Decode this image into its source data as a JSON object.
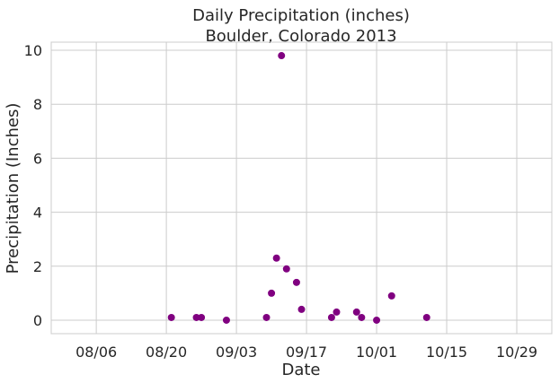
{
  "chart_data": {
    "type": "scatter",
    "title": "Daily Precipitation (inches)",
    "subtitle": "Boulder, Colorado 2013",
    "xlabel": "Date",
    "ylabel": "Precipitation (Inches)",
    "xlim": [
      "2013-07-28",
      "2013-11-05"
    ],
    "ylim": [
      -0.5,
      10.3
    ],
    "x_ticks": [
      {
        "date": "2013-08-06",
        "label": "08/06"
      },
      {
        "date": "2013-08-20",
        "label": "08/20"
      },
      {
        "date": "2013-09-03",
        "label": "09/03"
      },
      {
        "date": "2013-09-17",
        "label": "09/17"
      },
      {
        "date": "2013-10-01",
        "label": "10/01"
      },
      {
        "date": "2013-10-15",
        "label": "10/15"
      },
      {
        "date": "2013-10-29",
        "label": "10/29"
      }
    ],
    "y_ticks": [
      0,
      2,
      4,
      6,
      8,
      10
    ],
    "grid": true,
    "marker_color": "#800080",
    "points": [
      {
        "x": "2013-08-21",
        "y": 0.1
      },
      {
        "x": "2013-08-26",
        "y": 0.1
      },
      {
        "x": "2013-08-27",
        "y": 0.1
      },
      {
        "x": "2013-09-01",
        "y": 0.0
      },
      {
        "x": "2013-09-09",
        "y": 0.1
      },
      {
        "x": "2013-09-10",
        "y": 1.0
      },
      {
        "x": "2013-09-11",
        "y": 2.3
      },
      {
        "x": "2013-09-12",
        "y": 9.8
      },
      {
        "x": "2013-09-13",
        "y": 1.9
      },
      {
        "x": "2013-09-15",
        "y": 1.4
      },
      {
        "x": "2013-09-16",
        "y": 0.4
      },
      {
        "x": "2013-09-22",
        "y": 0.1
      },
      {
        "x": "2013-09-23",
        "y": 0.3
      },
      {
        "x": "2013-09-27",
        "y": 0.3
      },
      {
        "x": "2013-09-28",
        "y": 0.1
      },
      {
        "x": "2013-10-01",
        "y": 0.0
      },
      {
        "x": "2013-10-04",
        "y": 0.9
      },
      {
        "x": "2013-10-11",
        "y": 0.1
      }
    ]
  }
}
